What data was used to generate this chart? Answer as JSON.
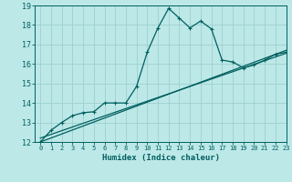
{
  "xlabel": "Humidex (Indice chaleur)",
  "ylabel": "",
  "bg_color": "#bde8e8",
  "grid_color": "#9dd0d0",
  "line_color": "#005f5f",
  "xlim": [
    -0.5,
    23
  ],
  "ylim": [
    12,
    19
  ],
  "yticks": [
    12,
    13,
    14,
    15,
    16,
    17,
    18,
    19
  ],
  "xticks": [
    0,
    1,
    2,
    3,
    4,
    5,
    6,
    7,
    8,
    9,
    10,
    11,
    12,
    13,
    14,
    15,
    16,
    17,
    18,
    19,
    20,
    21,
    22,
    23
  ],
  "curve1_x": [
    0,
    1,
    2,
    3,
    4,
    5,
    6,
    7,
    8,
    9,
    10,
    11,
    12,
    13,
    14,
    15,
    16,
    17,
    18,
    19,
    20,
    21,
    22,
    23
  ],
  "curve1_y": [
    12.0,
    12.6,
    13.0,
    13.35,
    13.5,
    13.55,
    14.0,
    14.0,
    14.0,
    14.85,
    16.6,
    17.85,
    18.85,
    18.35,
    17.85,
    18.2,
    17.8,
    16.2,
    16.1,
    15.8,
    15.95,
    16.2,
    16.5,
    16.6
  ],
  "curve2_x": [
    0,
    23
  ],
  "curve2_y": [
    12.0,
    16.7
  ],
  "curve3_x": [
    0,
    23
  ],
  "curve3_y": [
    12.2,
    16.55
  ],
  "marker": "+",
  "markersize": 3,
  "linewidth": 0.9
}
